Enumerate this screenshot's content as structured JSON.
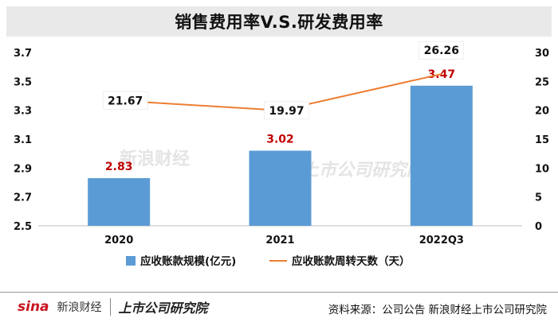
{
  "title": "销售费用率V.S.研发费用率",
  "chart_data": {
    "type": "bar+line",
    "categories": [
      "2020",
      "2021",
      "2022Q3"
    ],
    "series": [
      {
        "name": "应收账款规模(亿元)",
        "type": "bar",
        "axis": "left",
        "values": [
          2.83,
          3.02,
          3.47
        ],
        "color": "#5b9bd5",
        "label_color": "#c00000"
      },
      {
        "name": "应收账款周转天数（天）",
        "type": "line",
        "axis": "right",
        "values": [
          21.67,
          19.97,
          26.26
        ],
        "color": "#ed7d31"
      }
    ],
    "y_left": {
      "min": 2.5,
      "max": 3.7,
      "ticks": [
        "2.5",
        "2.7",
        "2.9",
        "3.1",
        "3.3",
        "3.5",
        "3.7"
      ]
    },
    "y_right": {
      "min": 0,
      "max": 30,
      "ticks": [
        "0",
        "5",
        "10",
        "15",
        "20",
        "25",
        "30"
      ]
    },
    "legend_position": "bottom",
    "grid": false
  },
  "watermark": {
    "left": "新浪财经",
    "right": "上市公司研究院"
  },
  "footer": {
    "logo_text": "sina",
    "logo_cn": "新浪财经",
    "institute": "上市公司研究院",
    "source": "资料来源：公司公告 新浪财经上市公司研究院"
  }
}
